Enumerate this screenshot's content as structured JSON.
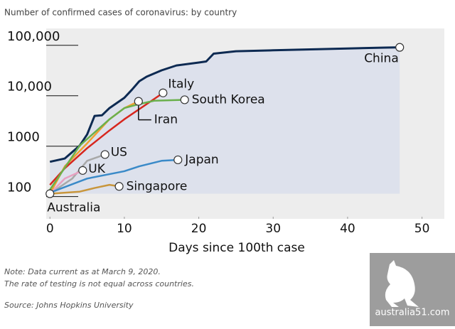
{
  "chart_data": {
    "type": "line",
    "title": "Number of confirmed cases of coronavirus: by country",
    "x_label": "Days since 100th case",
    "yscale": "log",
    "xlim": [
      -0.5,
      53
    ],
    "ylim": [
      35,
      190000
    ],
    "xticks": [
      0,
      10,
      20,
      30,
      40,
      50
    ],
    "yticks": [
      100,
      1000,
      {
        "value": 10000,
        "label": "10,000"
      },
      {
        "value": 100000,
        "label": "100,000"
      }
    ],
    "series": [
      {
        "name": "China",
        "color": "#0d2a52",
        "x": [
          0,
          2,
          4,
          5,
          6,
          7,
          8,
          10,
          11,
          12,
          13,
          15,
          17,
          20,
          21,
          22,
          25,
          30,
          35,
          40,
          45,
          47
        ],
        "values": [
          430,
          500,
          900,
          1500,
          3500,
          3600,
          5000,
          8000,
          11500,
          17000,
          21000,
          28000,
          35000,
          40000,
          42000,
          60000,
          67000,
          70000,
          73000,
          76000,
          79000,
          80000
        ]
      },
      {
        "name": "Italy",
        "color": "#d7261e",
        "x": [
          0,
          2,
          5,
          8,
          10,
          13,
          15.2
        ],
        "values": [
          150,
          320,
          800,
          1800,
          3000,
          6000,
          10000
        ]
      },
      {
        "name": "Iran",
        "color": "#f0a030",
        "x": [
          0,
          2,
          5,
          8,
          10,
          11.9
        ],
        "values": [
          100,
          350,
          1000,
          3000,
          5000,
          6800
        ]
      },
      {
        "name": "South Korea",
        "color": "#6ab04c",
        "x": [
          0,
          4,
          8,
          10,
          12,
          14,
          18.1
        ],
        "values": [
          120,
          900,
          3000,
          5000,
          6000,
          7000,
          7300
        ]
      },
      {
        "name": "US",
        "color": "#a8a8a8",
        "x": [
          0,
          3,
          5,
          7.4
        ],
        "values": [
          100,
          200,
          450,
          600
        ]
      },
      {
        "name": "UK",
        "color": "#e8a0c0",
        "x": [
          0,
          2,
          4.4
        ],
        "values": [
          100,
          200,
          290
        ]
      },
      {
        "name": "Japan",
        "color": "#3a8ac8",
        "x": [
          0,
          5,
          10,
          12,
          15,
          17.2
        ],
        "values": [
          105,
          200,
          280,
          350,
          450,
          470
        ]
      },
      {
        "name": "Singapore",
        "color": "#c8963c",
        "x": [
          0,
          4,
          6,
          8,
          9.3
        ],
        "values": [
          100,
          110,
          130,
          150,
          140
        ]
      },
      {
        "name": "Australia",
        "color": "#c8963c",
        "x": [
          0
        ],
        "values": [
          100
        ]
      }
    ]
  },
  "notes": [
    "Note: Data current as at March 9, 2020.",
    "The rate of testing is not equal across countries.",
    "Source: Johns Hopkins University"
  ],
  "watermark": "australia51.com"
}
